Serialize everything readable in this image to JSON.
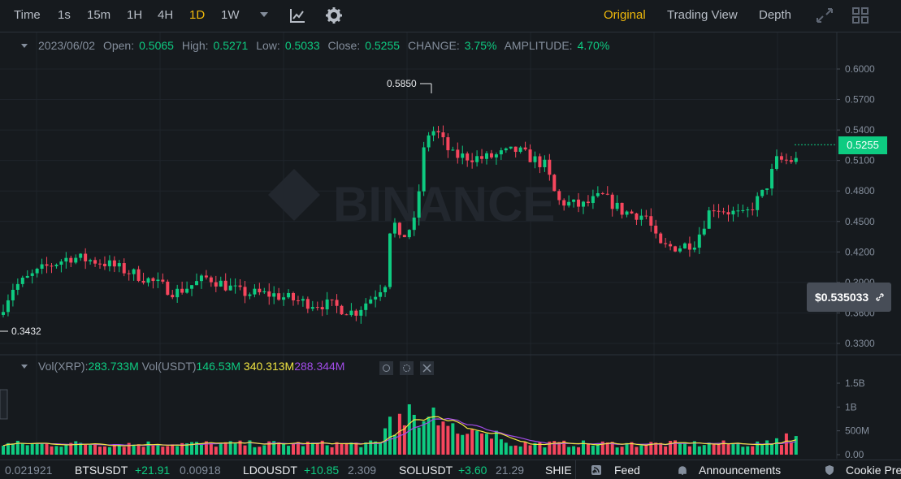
{
  "toolbar": {
    "timeframes": [
      "Time",
      "1s",
      "15m",
      "1H",
      "4H",
      "1D",
      "1W"
    ],
    "active_timeframe": "1D",
    "views": [
      "Original",
      "Trading View",
      "Depth"
    ],
    "active_view": "Original",
    "icons": [
      "chevron-down-icon",
      "indicator-icon",
      "settings-gear-icon",
      "fullscreen-icon",
      "grid-layout-icon"
    ]
  },
  "ohlc": {
    "date": "2023/06/02",
    "open_label": "Open:",
    "open": "0.5065",
    "high_label": "High:",
    "high": "0.5271",
    "low_label": "Low:",
    "low": "0.5033",
    "close_label": "Close:",
    "close": "0.5255",
    "change_label": "CHANGE:",
    "change": "3.75%",
    "amplitude_label": "AMPLITUDE:",
    "amplitude": "4.70%"
  },
  "price_axis": {
    "labels": [
      "0.6000",
      "0.5700",
      "0.5400",
      "0.5100",
      "0.4800",
      "0.4500",
      "0.4200",
      "0.3900",
      "0.3600",
      "0.3300"
    ]
  },
  "current_price": "0.5255",
  "hover_price": "$0.535033",
  "max_marker": "0.5850",
  "min_marker": "0.3432",
  "watermark": "BINANCE",
  "volume": {
    "label_xrp": "Vol(XRP):",
    "value_xrp": "283.733M",
    "label_usdt": "Vol(USDT)",
    "value_usdt": "146.53M",
    "ma1": "340.313M",
    "ma2": "288.344M",
    "axis_labels": [
      "1.5B",
      "1B",
      "500M",
      "0.00"
    ]
  },
  "colors": {
    "up": "#0ECB81",
    "down": "#F6465D",
    "accent": "#F0B90B",
    "ma_yellow": "#F0E442",
    "ma_purple": "#A24CE8"
  },
  "ticker": [
    {
      "price": "0.021921"
    },
    {
      "symbol": "BTSUSDT",
      "change": "+21.91",
      "price": "0.00918"
    },
    {
      "symbol": "LDOUSDT",
      "change": "+10.85",
      "price": "2.309"
    },
    {
      "symbol": "SOLUSDT",
      "change": "+3.60",
      "price": "21.29"
    },
    {
      "symbol": "SHIE"
    }
  ],
  "footer": {
    "feed": "Feed",
    "announcements": "Announcements",
    "cookie": "Cookie Pre"
  }
}
